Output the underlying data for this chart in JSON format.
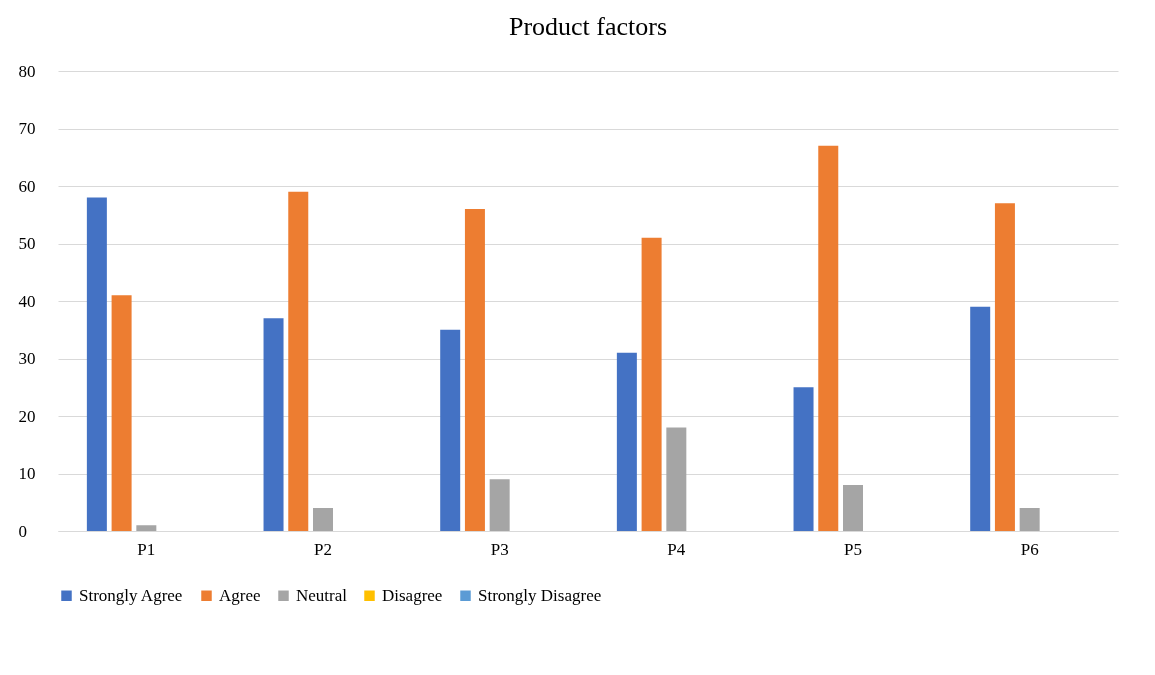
{
  "chart_data": {
    "type": "bar",
    "title": "Product factors",
    "categories": [
      "P1",
      "P2",
      "P3",
      "P4",
      "P5",
      "P6"
    ],
    "series": [
      {
        "name": "Strongly Agree",
        "color": "#4472c4",
        "values": [
          58,
          37,
          35,
          31,
          25,
          39
        ]
      },
      {
        "name": "Agree",
        "color": "#ed7d31",
        "values": [
          41,
          59,
          56,
          51,
          67,
          57
        ]
      },
      {
        "name": "Neutral",
        "color": "#a5a5a5",
        "values": [
          1,
          4,
          9,
          18,
          8,
          4
        ]
      },
      {
        "name": "Disagree",
        "color": "#ffc000",
        "values": [
          0,
          0,
          0,
          0,
          0,
          0
        ]
      },
      {
        "name": "Strongly Disagree",
        "color": "#5b9bd5",
        "values": [
          0,
          0,
          0,
          0,
          0,
          0
        ]
      }
    ],
    "ylim": [
      0,
      80
    ],
    "yticks": [
      0,
      10,
      20,
      30,
      40,
      50,
      60,
      70,
      80
    ],
    "grid": "y",
    "legend": "bottom"
  }
}
